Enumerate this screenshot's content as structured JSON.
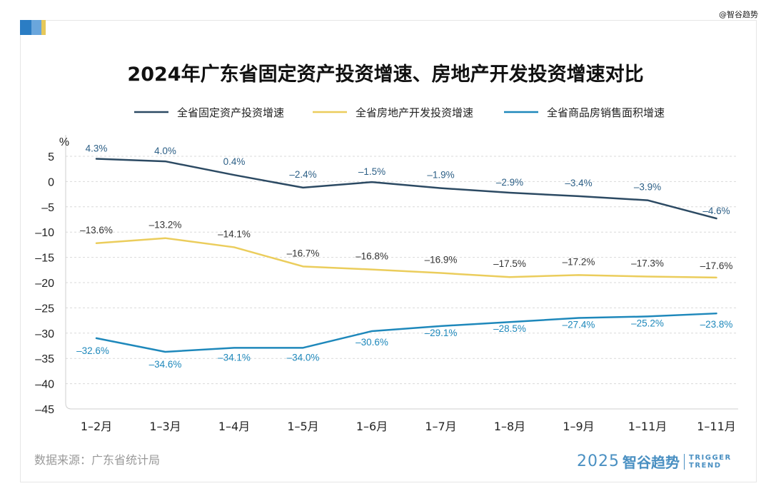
{
  "watermark": "@智谷趋势",
  "source": "数据来源：广东省统计局",
  "brand": {
    "year": "2025",
    "cn": "智谷趋势",
    "en_line1": "TRIGGER",
    "en_line2": "TREND"
  },
  "colors": {
    "deco1": "#2b7dc4",
    "deco2": "#6aa6dc",
    "deco3": "#e6c85a",
    "series1": "#2c4a63",
    "series2": "#ebcd5c",
    "series3": "#1e88bb"
  },
  "chart_data": {
    "type": "line",
    "title": "2024年广东省固定资产投资增速、房地产开发投资增速对比",
    "ylabel": "%",
    "ylim": [
      -45,
      5
    ],
    "yticks": [
      5,
      0,
      -5,
      -10,
      -15,
      -20,
      -25,
      -30,
      -35,
      -40,
      -45
    ],
    "grid": true,
    "legend_position": "top",
    "categories": [
      "1–2月",
      "1–3月",
      "1–4月",
      "1–5月",
      "1–6月",
      "1–7月",
      "1–8月",
      "1–9月",
      "1–11月",
      "1–11月"
    ],
    "series": [
      {
        "name": "全省固定资产投资增速",
        "values": [
          4.3,
          4.0,
          0.4,
          -2.4,
          -1.5,
          -1.9,
          -2.9,
          -3.4,
          -3.9,
          -4.6
        ],
        "labels": [
          "4.3%",
          "4.0%",
          "0.4%",
          "–2.4%",
          "–1.5%",
          "–1.9%",
          "–2.9%",
          "–3.4%",
          "–3.9%",
          "–4.6%"
        ],
        "drawn": [
          4.5,
          4.0,
          1.3,
          -1.2,
          -0.1,
          -1.3,
          -2.2,
          -2.9,
          -3.7,
          -7.3
        ]
      },
      {
        "name": "全省房地产开发投资增速",
        "values": [
          -13.6,
          -13.2,
          -14.1,
          -16.7,
          -16.8,
          -16.9,
          -17.5,
          -17.2,
          -17.3,
          -17.6
        ],
        "labels": [
          "–13.6%",
          "–13.2%",
          "–14.1%",
          "–16.7%",
          "–16.8%",
          "–16.9%",
          "–17.5%",
          "–17.2%",
          "–17.3%",
          "–17.6%"
        ],
        "drawn": [
          -12.2,
          -11.2,
          -13.0,
          -16.8,
          -17.4,
          -18.1,
          -18.9,
          -18.5,
          -18.8,
          -19.0
        ]
      },
      {
        "name": "全省商品房销售面积增速",
        "values": [
          -32.6,
          -34.6,
          -34.1,
          -34.0,
          -30.6,
          -29.1,
          -28.5,
          -27.4,
          -25.2,
          -23.8
        ],
        "labels": [
          "–32.6%",
          "–34.6%",
          "–34.1%",
          "–34.0%",
          "–30.6%",
          "–29.1%",
          "–28.5%",
          "–27.4%",
          "–25.2%",
          "–23.8%"
        ],
        "drawn": [
          -31.0,
          -33.7,
          -32.9,
          -32.9,
          -29.6,
          -28.6,
          -27.8,
          -27.0,
          -26.7,
          -26.1
        ]
      }
    ]
  }
}
